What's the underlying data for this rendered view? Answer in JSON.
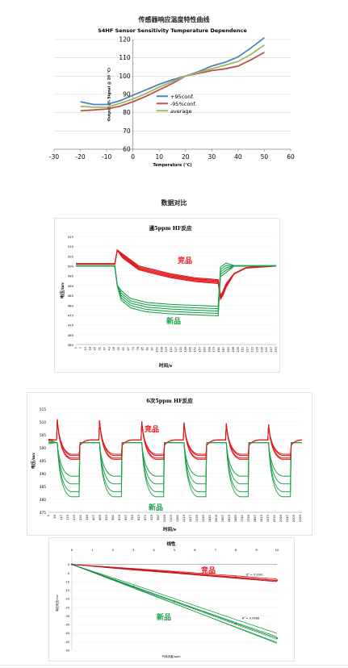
{
  "page": {
    "main_title": "传感器响应温度特性曲线",
    "compare_title": "数据对比",
    "accent_red": "#e3171b",
    "accent_green": "#1aa24b"
  },
  "chart_data": [
    {
      "type": "line",
      "title": "S4HF Sensor Sensitivity Temperature Dependence",
      "xlabel": "Temperature (℃)",
      "ylabel": "Output (% Signal @ 20 ℃)",
      "xlim": [
        -30,
        60
      ],
      "ylim": [
        60,
        120
      ],
      "xticks": [
        -30,
        -20,
        -10,
        0,
        10,
        20,
        30,
        40,
        50,
        60
      ],
      "yticks": [
        60,
        70,
        80,
        90,
        100,
        110,
        120
      ],
      "grid": "horizontal",
      "legend_position": "lower-center",
      "series": [
        {
          "name": "+95conf.",
          "color": "#4f81bd",
          "x": [
            -20,
            -15,
            -10,
            -5,
            0,
            5,
            10,
            15,
            20,
            25,
            30,
            35,
            40,
            45,
            50
          ],
          "y": [
            86,
            84.5,
            84.5,
            86.5,
            89.5,
            92.5,
            95.5,
            98,
            100,
            102.5,
            105.5,
            107.5,
            110.5,
            115.5,
            121
          ]
        },
        {
          "name": "-95%conf.",
          "color": "#c0504d",
          "x": [
            -20,
            -15,
            -10,
            -5,
            0,
            5,
            10,
            15,
            20,
            25,
            30,
            35,
            40,
            45,
            50
          ],
          "y": [
            81,
            81.5,
            82,
            83.5,
            86,
            89,
            92.5,
            96,
            100,
            101.5,
            103,
            104,
            105.5,
            109,
            113
          ]
        },
        {
          "name": "average",
          "color": "#9bbb59",
          "x": [
            -20,
            -15,
            -10,
            -5,
            0,
            5,
            10,
            15,
            20,
            25,
            30,
            35,
            40,
            45,
            50
          ],
          "y": [
            83.5,
            83,
            83,
            85,
            87.5,
            90.5,
            94,
            97,
            100,
            102,
            104,
            106,
            108,
            112,
            117
          ]
        }
      ]
    },
    {
      "type": "line",
      "title": "通5ppm HF反应",
      "xlabel": "时间/s",
      "ylabel": "电压/mv",
      "ylim": [
        460,
        515
      ],
      "yticks": [
        460,
        465,
        470,
        475,
        480,
        485,
        490,
        495,
        500,
        505,
        510,
        515
      ],
      "xlim": [
        1,
        253
      ],
      "annotations": [
        "竞品",
        "新品"
      ],
      "series": [
        {
          "name": "竞品",
          "color": "#e3171b",
          "x": [
            1,
            50,
            53,
            60,
            80,
            100,
            120,
            150,
            180,
            183,
            186,
            190,
            200,
            215,
            253
          ],
          "y": [
            501,
            501,
            508,
            505,
            499,
            497,
            495,
            493,
            492,
            484,
            486,
            490,
            496,
            499,
            500
          ]
        },
        {
          "name": "新品",
          "color": "#1aa24b",
          "x": [
            1,
            50,
            53,
            58,
            70,
            90,
            120,
            150,
            180,
            183,
            190,
            200,
            215,
            253
          ],
          "y": [
            500,
            500,
            490,
            485,
            481,
            479,
            478,
            477.5,
            477,
            497,
            499,
            500,
            500,
            500
          ]
        }
      ]
    },
    {
      "type": "line",
      "title": "6次5ppm HF反应",
      "xlabel": "时间/s",
      "ylabel": "电压/mv",
      "ylim": [
        475,
        515
      ],
      "yticks": [
        475,
        480,
        485,
        490,
        495,
        500,
        505,
        510,
        515
      ],
      "annotations": [
        "竞品",
        "新品"
      ],
      "series": [
        {
          "name": "竞品",
          "color": "#e3171b",
          "cycles": 6,
          "baseline": 503,
          "peak": 511,
          "trough": 496
        },
        {
          "name": "新品",
          "color": "#1aa24b",
          "cycles": 6,
          "baseline": 502,
          "trough": 483
        }
      ]
    },
    {
      "type": "line",
      "title": "线性",
      "xlabel": "气体浓度/ppm",
      "ylabel": "响应电压/mv",
      "xlim": [
        0,
        10
      ],
      "ylim": [
        -50,
        5
      ],
      "xticks": [
        0,
        1,
        2,
        3,
        4,
        5,
        6,
        7,
        8,
        9,
        10
      ],
      "yticks": [
        0,
        -5,
        -10,
        -15,
        -20,
        -25,
        -30,
        -35,
        -40,
        -45,
        -50
      ],
      "annotations": [
        "竞品",
        "新品",
        "R² = 0.9941",
        "R² = 0.9988"
      ],
      "series": [
        {
          "name": "竞品",
          "color": "#e3171b",
          "x": [
            0,
            3,
            5,
            8,
            10
          ],
          "y": [
            0,
            -2.8,
            -4.6,
            -7.4,
            -9.3
          ]
        },
        {
          "name": "新品",
          "color": "#1aa24b",
          "x": [
            0,
            3,
            5,
            8,
            10
          ],
          "y": [
            0,
            -12.8,
            -21.5,
            -34.5,
            -43
          ]
        }
      ]
    }
  ]
}
